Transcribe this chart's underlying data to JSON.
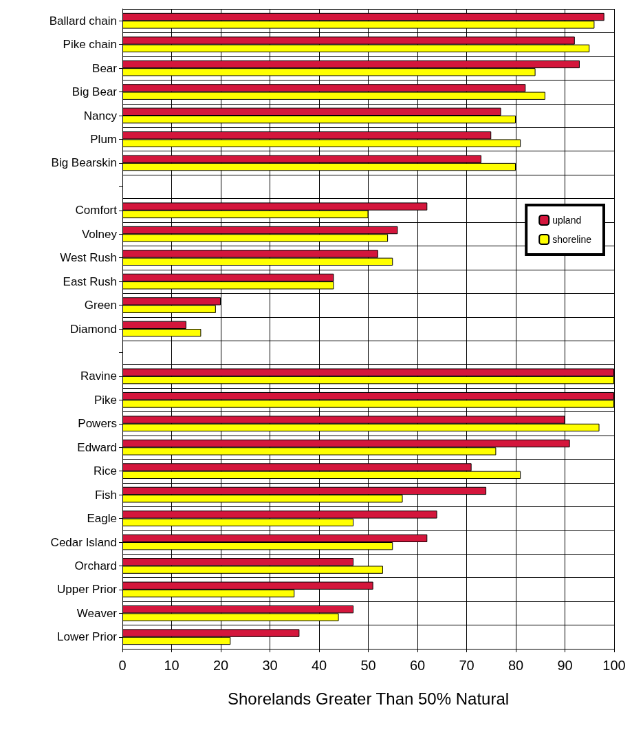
{
  "chart_data": {
    "type": "bar",
    "orientation": "horizontal",
    "xlabel": "Shorelands Greater Than 50% Natural",
    "categories": [
      "Ballard chain",
      "Pike chain",
      "Bear",
      "Big Bear",
      "Nancy",
      "Plum",
      "Big Bearskin",
      null,
      "Comfort",
      "Volney",
      "West Rush",
      "East Rush",
      "Green",
      "Diamond",
      null,
      "Ravine",
      "Pike",
      "Powers",
      "Edward",
      "Rice",
      "Fish",
      "Eagle",
      "Cedar Island",
      "Orchard",
      "Upper Prior",
      "Weaver",
      "Lower Prior"
    ],
    "series": [
      {
        "name": "upland",
        "color": "#d4163c",
        "values": [
          98,
          92,
          93,
          82,
          77,
          75,
          73,
          null,
          62,
          56,
          52,
          43,
          20,
          13,
          null,
          100,
          100,
          90,
          91,
          71,
          74,
          64,
          62,
          47,
          51,
          47,
          36
        ]
      },
      {
        "name": "shoreline",
        "color": "#ffff00",
        "values": [
          96,
          95,
          84,
          86,
          80,
          81,
          80,
          null,
          50,
          54,
          55,
          43,
          19,
          16,
          null,
          100,
          100,
          97,
          76,
          81,
          57,
          47,
          55,
          53,
          35,
          44,
          22
        ]
      }
    ],
    "xlim": [
      0,
      100
    ],
    "xticks": [
      0,
      10,
      20,
      30,
      40,
      50,
      60,
      70,
      80,
      90,
      100
    ],
    "grid": true,
    "legend": "right"
  }
}
